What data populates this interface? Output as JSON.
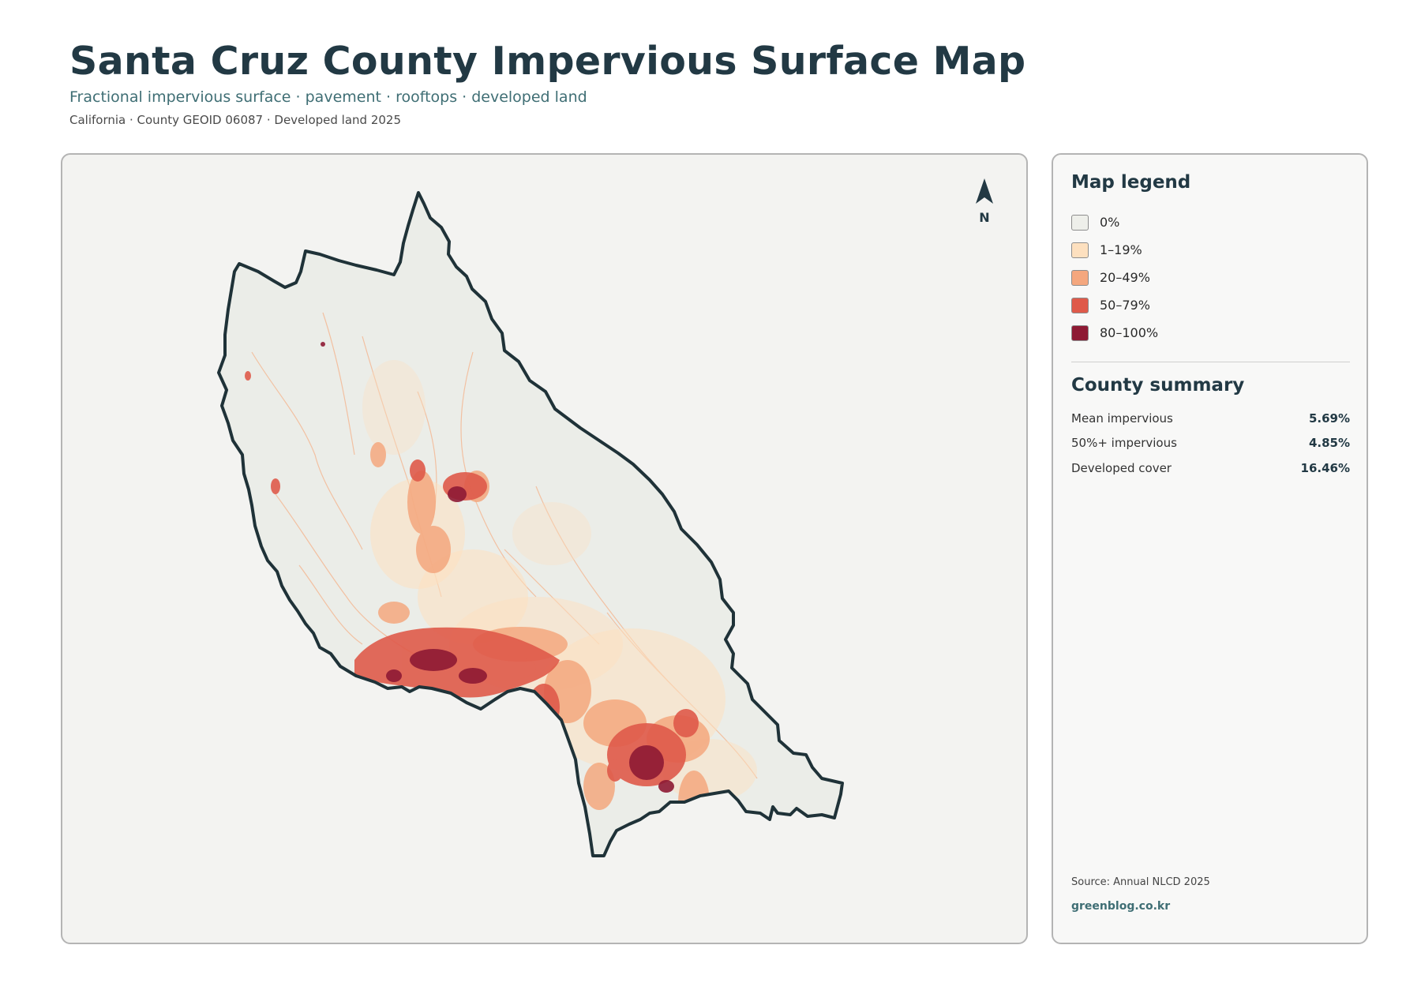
{
  "header": {
    "title": "Santa Cruz County Impervious Surface Map",
    "subtitle": "Fractional impervious surface · pavement · rooftops · developed land",
    "meta": "California · County GEOID 06087 · Developed land 2025"
  },
  "map": {
    "north_label": "N",
    "county_fill": "#ebede8",
    "outline_color": "#1f3238"
  },
  "legend": {
    "title": "Map legend",
    "items": [
      {
        "label": "0%",
        "color": "#eeefea"
      },
      {
        "label": "1–19%",
        "color": "#fde0bf"
      },
      {
        "label": "20–49%",
        "color": "#f4a77e"
      },
      {
        "label": "50–79%",
        "color": "#df5a4a"
      },
      {
        "label": "80–100%",
        "color": "#8e1a34"
      }
    ]
  },
  "summary": {
    "title": "County summary",
    "stats": [
      {
        "label": "Mean impervious",
        "value": "5.69%"
      },
      {
        "label": "50%+ impervious",
        "value": "4.85%"
      },
      {
        "label": "Developed cover",
        "value": "16.46%"
      }
    ]
  },
  "footer": {
    "source": "Source: Annual NLCD 2025",
    "credit": "greenblog.co.kr"
  }
}
